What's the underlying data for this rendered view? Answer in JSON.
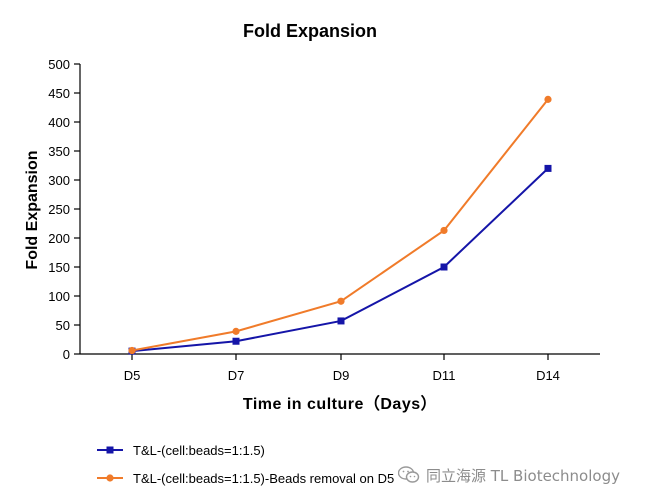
{
  "chart_data": {
    "type": "line",
    "title": "Fold Expansion",
    "xlabel": "Time in culture（Days）",
    "ylabel": "Fold Expansion",
    "categories": [
      "D5",
      "D7",
      "D9",
      "D11",
      "D14"
    ],
    "ylim": [
      0,
      500
    ],
    "yticks": [
      0,
      50,
      100,
      150,
      200,
      250,
      300,
      350,
      400,
      450,
      500
    ],
    "grid": false,
    "legend_position": "bottom-left",
    "series": [
      {
        "name": "T&L-(cell:beads=1:1.5)",
        "values": [
          5,
          22,
          57,
          150,
          320
        ],
        "color": "#1515a8",
        "marker": "square"
      },
      {
        "name": "T&L-(cell:beads=1:1.5)-Beads removal on D5",
        "values": [
          6,
          39,
          91,
          213,
          439
        ],
        "color": "#f07b2a",
        "marker": "circle"
      }
    ]
  },
  "watermark": {
    "text": "同立海源 TL Biotechnology",
    "icon": "wechat-icon"
  }
}
